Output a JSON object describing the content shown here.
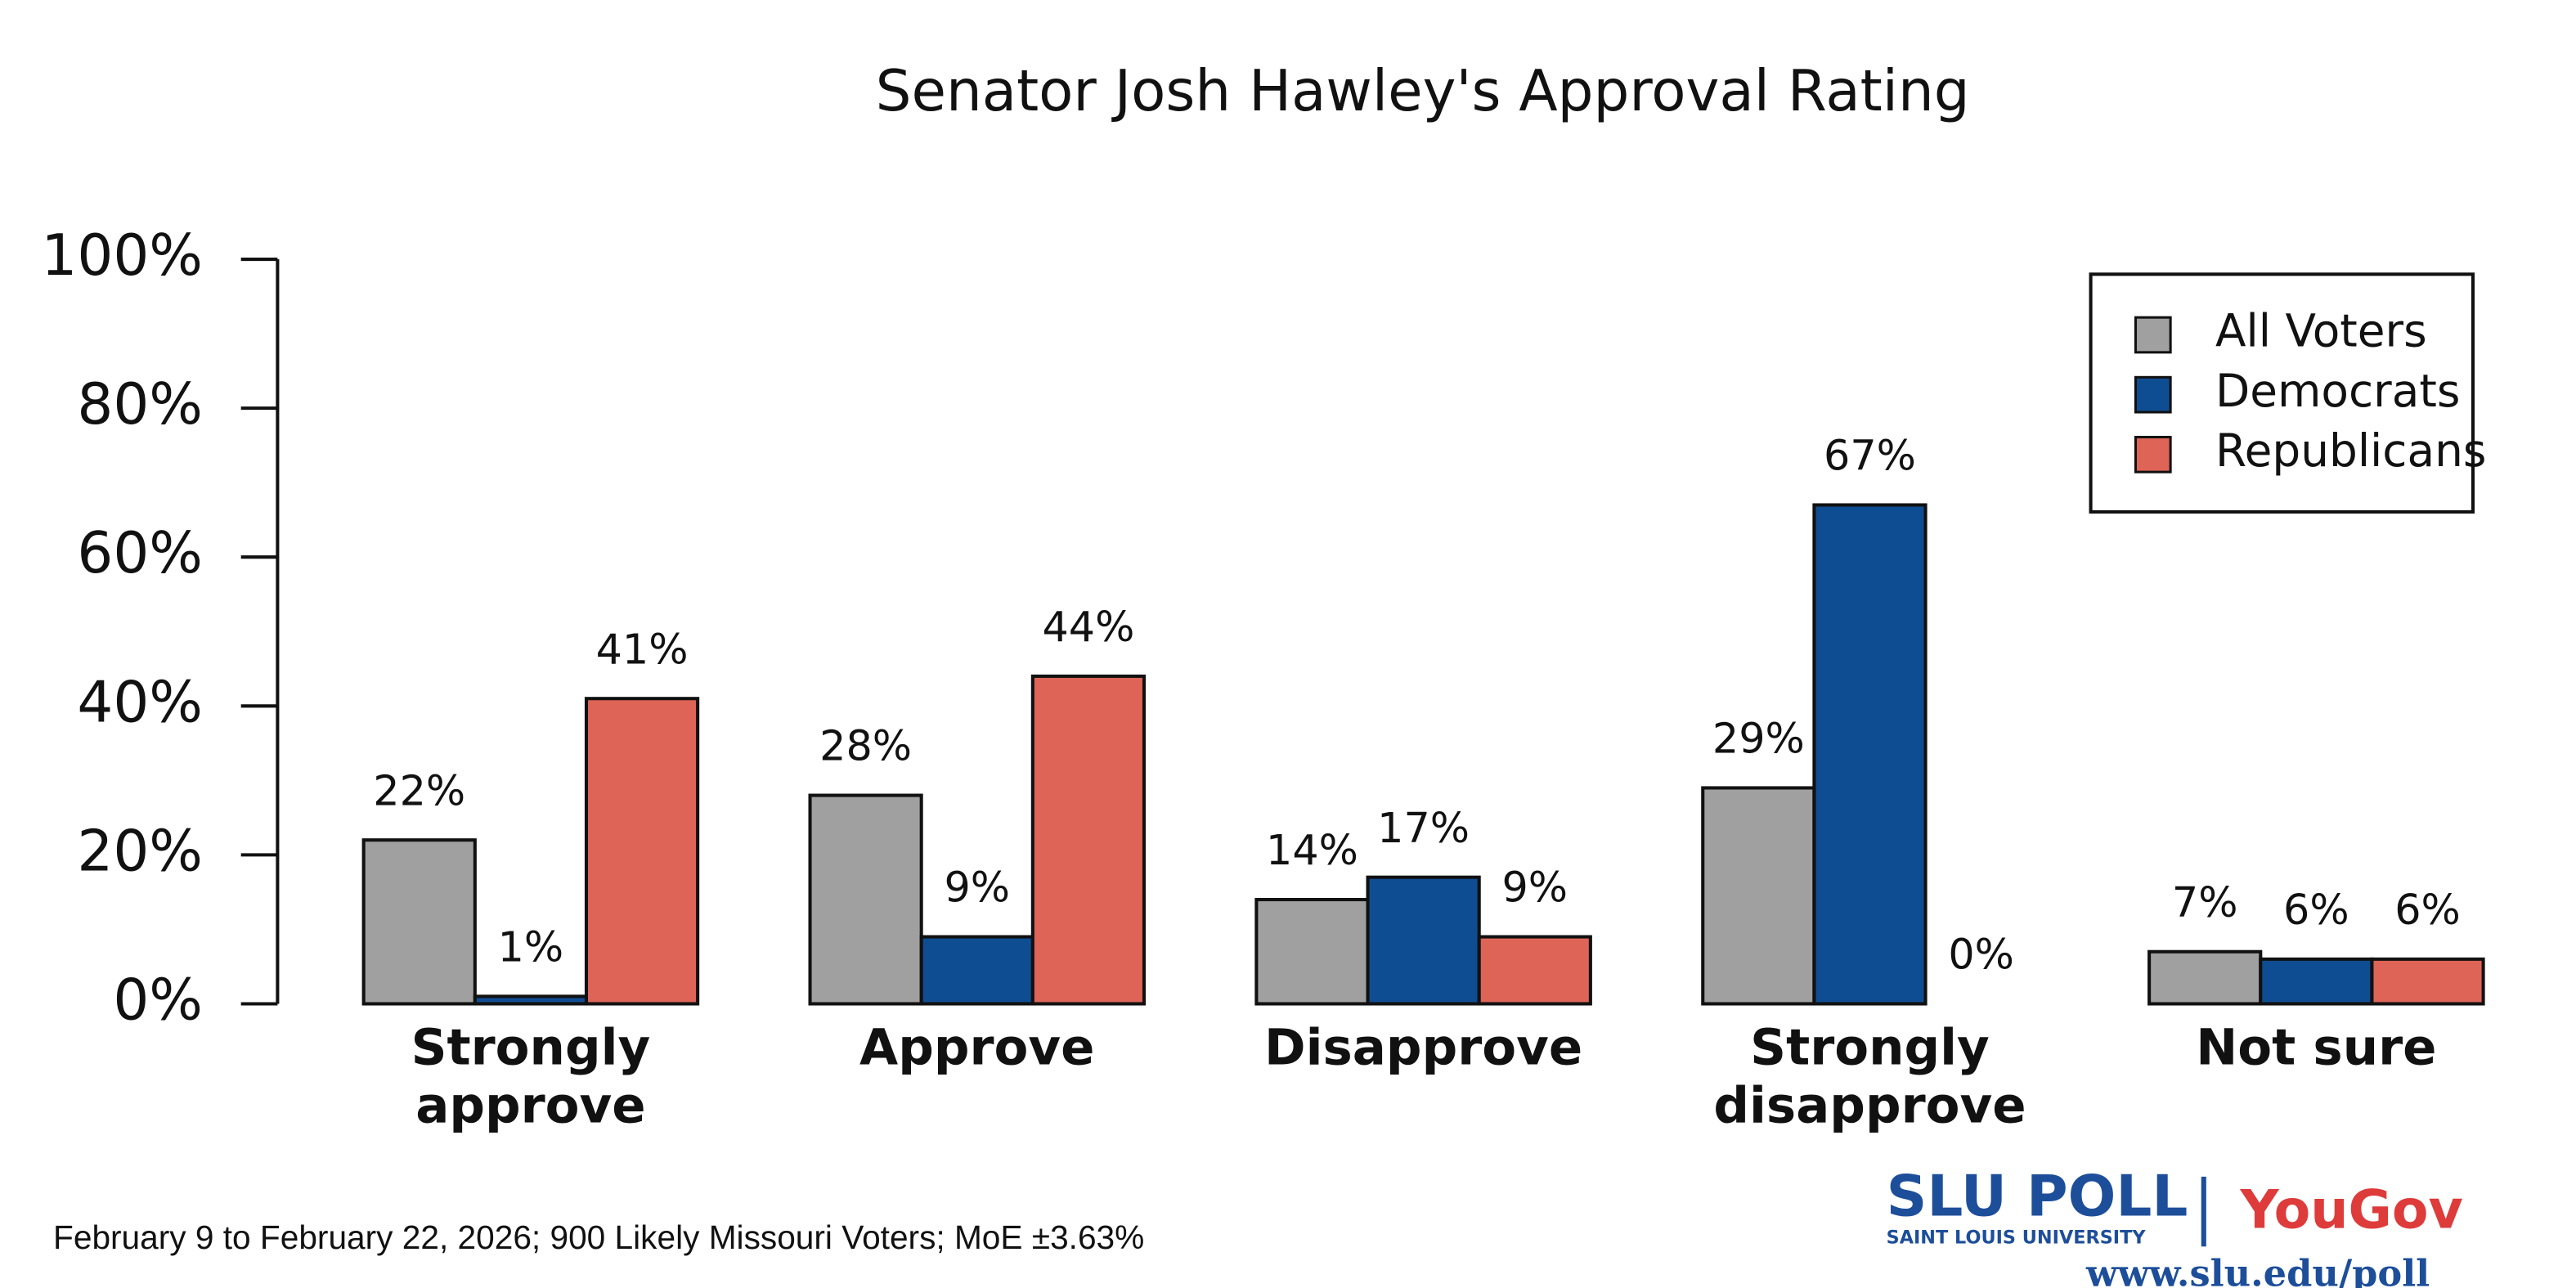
{
  "chart_data": {
    "type": "bar",
    "title": "Senator Josh Hawley's Approval Rating",
    "categories": [
      "Strongly\napprove",
      "Approve",
      "Disapprove",
      "Strongly\ndisapprove",
      "Not sure"
    ],
    "series": [
      {
        "name": "All Voters",
        "color": "#a0a0a0",
        "values": [
          22,
          28,
          14,
          29,
          7
        ],
        "value_labels": [
          "22%",
          "28%",
          "14%",
          "29%",
          "7%"
        ]
      },
      {
        "name": "Democrats",
        "color": "#0f4d92",
        "values": [
          1,
          9,
          17,
          67,
          6
        ],
        "value_labels": [
          "1%",
          "9%",
          "17%",
          "67%",
          "6%"
        ]
      },
      {
        "name": "Republicans",
        "color": "#de6457",
        "values": [
          41,
          44,
          9,
          0,
          6
        ],
        "value_labels": [
          "41%",
          "44%",
          "9%",
          "0%",
          "6%"
        ]
      }
    ],
    "ylim": [
      0,
      100
    ],
    "yticks": [
      {
        "value": 0,
        "label": "0%"
      },
      {
        "value": 20,
        "label": "20%"
      },
      {
        "value": 40,
        "label": "40%"
      },
      {
        "value": 60,
        "label": "60%"
      },
      {
        "value": 80,
        "label": "80%"
      },
      {
        "value": 100,
        "label": "100%"
      }
    ],
    "legend": "top-right",
    "note": "February 9 to February 22, 2026; 900 Likely Missouri Voters; MoE ±3.63%",
    "logo": {
      "poll": "SLU POLL",
      "university": "SAINT LOUIS UNIVERSITY",
      "partner": "YouGov",
      "url": "www.slu.edu/poll"
    }
  }
}
